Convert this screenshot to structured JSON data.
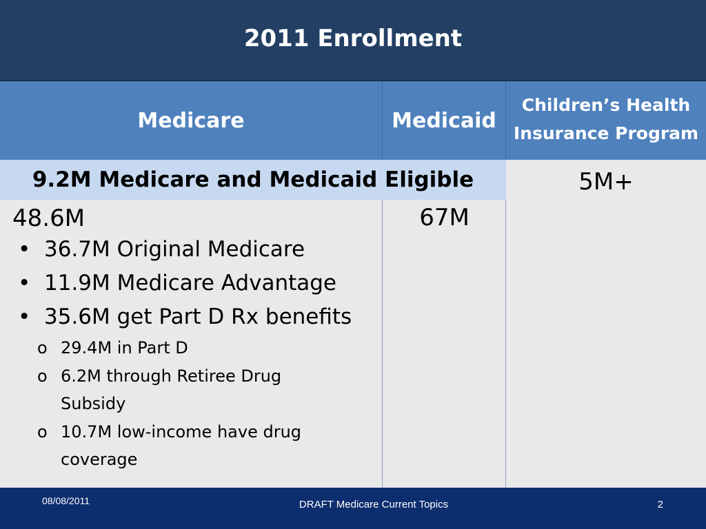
{
  "title": "2011 Enrollment",
  "headers": {
    "medicare": "Medicare",
    "medicaid": "Medicaid",
    "chip_line1": "Children’s Health",
    "chip_line2": "Insurance Program"
  },
  "eligible_banner": "9.2M Medicare and Medicaid Eligible",
  "medicare": {
    "total": "48.6M",
    "items": [
      "36.7M Original Medicare",
      "11.9M Medicare Advantage",
      "35.6M get Part D Rx benefits"
    ],
    "sub_items": [
      "29.4M in Part D",
      "6.2M through Retiree Drug",
      "Subsidy",
      "10.7M low-income have drug",
      "coverage"
    ],
    "bullet": "•",
    "sub_bullet": "o"
  },
  "medicaid_total": "67M",
  "chip_total": "5M+",
  "footer": {
    "date": "08/08/2011",
    "topic": "DRAFT Medicare Current Topics",
    "page": "2"
  },
  "colors": {
    "title_bg": "#234064",
    "header_bg": "#4f81bd",
    "banner_bg": "#c6d9f1",
    "cell_bg": "#e9e9e9",
    "footer_bg": "#0d2e6e"
  }
}
